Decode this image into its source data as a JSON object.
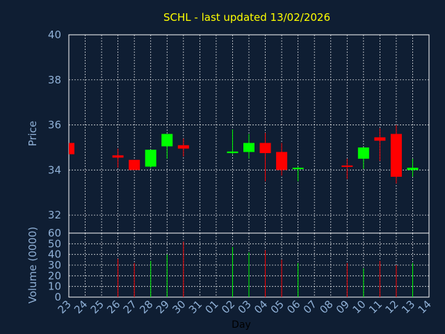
{
  "chart_data": {
    "type": "candlestick",
    "title": "SCHL - last updated 13/02/2026",
    "xlabel": "Day",
    "price_panel": {
      "ylabel": "Price",
      "ylim": [
        31.2,
        40
      ],
      "yticks": [
        "40",
        "38",
        "36",
        "34",
        "32"
      ],
      "grid": true
    },
    "volume_panel": {
      "ylabel": "Volume (0000)",
      "ylim": [
        0,
        60
      ],
      "yticks": [
        "60",
        "50",
        "40",
        "30",
        "20",
        "10",
        "0"
      ],
      "grid": true
    },
    "x_ticks": [
      "23",
      "24",
      "25",
      "26",
      "27",
      "28",
      "29",
      "30",
      "31",
      "01",
      "02",
      "03",
      "04",
      "05",
      "06",
      "07",
      "08",
      "09",
      "10",
      "11",
      "12",
      "13",
      "14"
    ],
    "candles": [
      {
        "day": "23",
        "open": 35.2,
        "high": 35.2,
        "low": 34.7,
        "close": 34.7,
        "volume": 0
      },
      {
        "day": "26",
        "open": 34.65,
        "high": 34.95,
        "low": 34.1,
        "close": 34.55,
        "volume": 36
      },
      {
        "day": "27",
        "open": 34.45,
        "high": 34.45,
        "low": 34.0,
        "close": 34.0,
        "volume": 32
      },
      {
        "day": "28",
        "open": 34.15,
        "high": 34.9,
        "low": 34.1,
        "close": 34.9,
        "volume": 34
      },
      {
        "day": "29",
        "open": 35.05,
        "high": 35.6,
        "low": 34.5,
        "close": 35.6,
        "volume": 40
      },
      {
        "day": "30",
        "open": 35.1,
        "high": 35.4,
        "low": 34.6,
        "close": 34.95,
        "volume": 52
      },
      {
        "day": "02",
        "open": 34.75,
        "high": 35.8,
        "low": 34.7,
        "close": 34.82,
        "volume": 47
      },
      {
        "day": "03",
        "open": 34.8,
        "high": 35.6,
        "low": 34.5,
        "close": 35.2,
        "volume": 42
      },
      {
        "day": "04",
        "open": 35.2,
        "high": 35.65,
        "low": 33.5,
        "close": 34.75,
        "volume": 44
      },
      {
        "day": "05",
        "open": 34.8,
        "high": 35.2,
        "low": 33.75,
        "close": 34.0,
        "volume": 35
      },
      {
        "day": "06",
        "open": 34.05,
        "high": 34.15,
        "low": 33.5,
        "close": 34.1,
        "volume": 32
      },
      {
        "day": "09",
        "open": 34.2,
        "high": 34.5,
        "low": 33.6,
        "close": 34.15,
        "volume": 32
      },
      {
        "day": "10",
        "open": 34.5,
        "high": 35.0,
        "low": 34.05,
        "close": 35.0,
        "volume": 27
      },
      {
        "day": "11",
        "open": 35.45,
        "high": 35.85,
        "low": 34.4,
        "close": 35.3,
        "volume": 34
      },
      {
        "day": "12",
        "open": 35.6,
        "high": 36.0,
        "low": 33.4,
        "close": 33.7,
        "volume": 30
      },
      {
        "day": "13",
        "open": 34.0,
        "high": 34.5,
        "low": 33.7,
        "close": 34.1,
        "volume": 32
      }
    ],
    "colors": {
      "background": "#0f1e33",
      "up": "#00ff00",
      "down": "#ff0000",
      "grid": "#ffffff",
      "title": "#ffff00",
      "axis_text": "#8fb0d6"
    }
  }
}
